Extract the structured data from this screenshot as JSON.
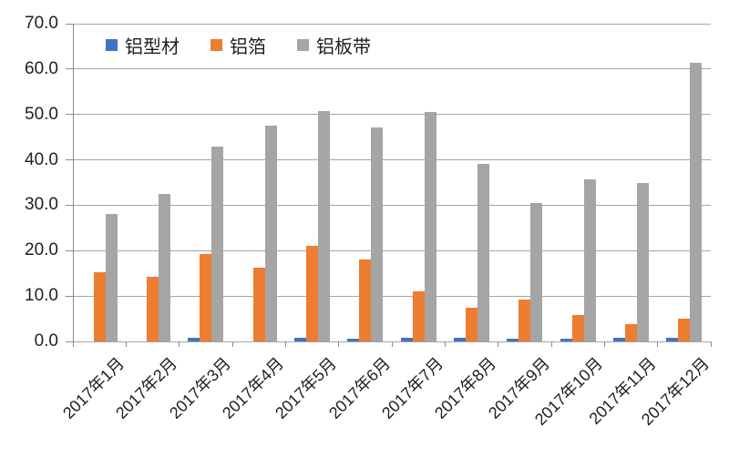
{
  "chart_data": {
    "type": "bar",
    "title": "",
    "categories": [
      "2017年1月",
      "2017年2月",
      "2017年3月",
      "2017年4月",
      "2017年5月",
      "2017年6月",
      "2017年7月",
      "2017年8月",
      "2017年9月",
      "2017年10月",
      "2017年11月",
      "2017年12月"
    ],
    "series": [
      {
        "name": "铝型材",
        "color": "#4472C4",
        "values": [
          0,
          0,
          0.8,
          0,
          0.9,
          0.7,
          0.9,
          0.8,
          0.7,
          0.6,
          0.8,
          0.8
        ]
      },
      {
        "name": "铝箔",
        "color": "#ED7D31",
        "values": [
          15.3,
          14.3,
          19.2,
          16.2,
          21.0,
          18.0,
          11.0,
          7.5,
          9.2,
          5.9,
          3.9,
          5.1
        ]
      },
      {
        "name": "铝板带",
        "color": "#A5A5A5",
        "values": [
          28.0,
          32.4,
          42.9,
          47.5,
          50.8,
          47.2,
          50.5,
          39.2,
          30.5,
          35.8,
          34.8,
          61.3
        ]
      }
    ],
    "xlabel": "",
    "ylabel": "",
    "ylim": [
      0,
      70
    ],
    "ytick_step": 10,
    "ytick_labels": [
      "0.0",
      "10.0",
      "20.0",
      "30.0",
      "40.0",
      "50.0",
      "60.0",
      "70.0"
    ],
    "grid": "horizontal",
    "legend_position": "top-inside"
  },
  "colors": {
    "gridline": "#a6a6a6",
    "axis": "#8c8c8c",
    "text": "#1f1f1f",
    "background": "#ffffff"
  }
}
